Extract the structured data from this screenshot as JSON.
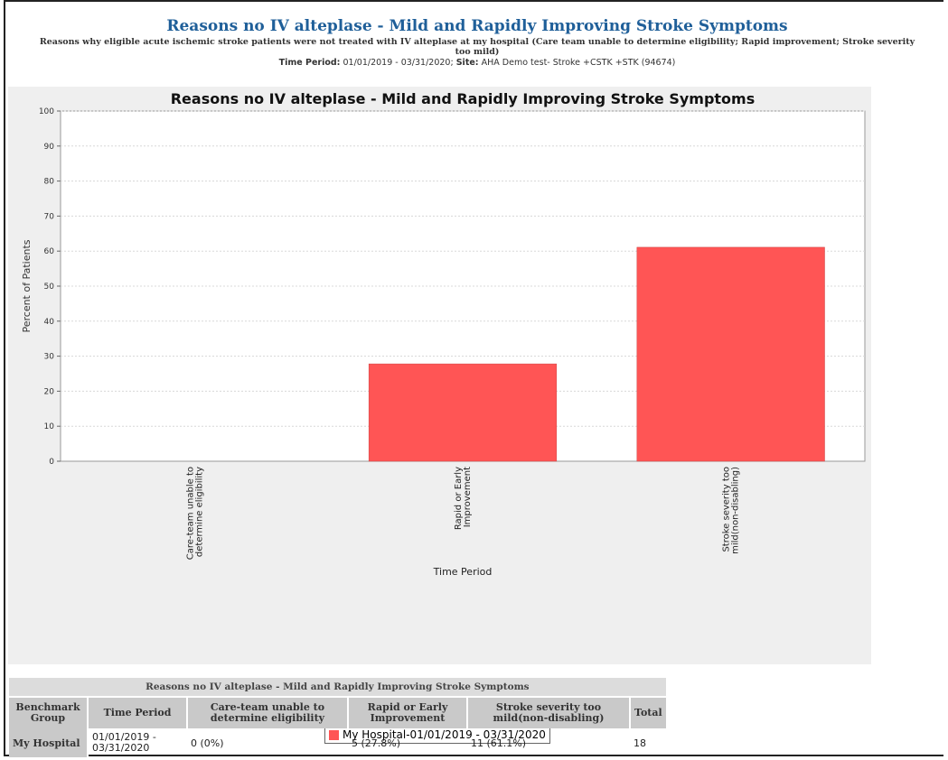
{
  "header": {
    "title": "Reasons no IV alteplase - Mild and Rapidly Improving Stroke Symptoms",
    "subtitle": "Reasons why eligible acute ischemic stroke patients were not treated with IV alteplase at my hospital (Care team unable to determine eligibility; Rapid improvement; Stroke severity",
    "subtitle_cont": "too mild)",
    "time_period_label": "Time Period:",
    "time_period_value": "01/01/2019 - 03/31/2020;",
    "site_label": "Site:",
    "site_value": "AHA Demo test- Stroke +CSTK +STK (94674)"
  },
  "chart_data": {
    "type": "bar",
    "title": "Reasons no IV alteplase - Mild and Rapidly Improving Stroke Symptoms",
    "xlabel": "Time Period",
    "ylabel": "Percent of Patients",
    "ylim": [
      0,
      100
    ],
    "yticks": [
      0,
      10,
      20,
      30,
      40,
      50,
      60,
      70,
      80,
      90,
      100
    ],
    "categories": [
      [
        "Care-team unable to",
        "determine eligibility"
      ],
      [
        "Rapid or Early",
        "Improvement"
      ],
      [
        "Stroke severity too",
        "mild(non-disabling)"
      ]
    ],
    "series": [
      {
        "name": "My Hospital-01/01/2019 - 03/31/2020",
        "values": [
          0,
          27.8,
          61.1
        ],
        "color": "#ff5555"
      }
    ],
    "grid": true,
    "legend": "bottom-center"
  },
  "table": {
    "caption": "Reasons no IV alteplase - Mild and Rapidly Improving Stroke Symptoms",
    "headers": [
      [
        "Benchmark",
        "Group"
      ],
      [
        "Time Period"
      ],
      [
        "Care-team unable to",
        "determine eligibility"
      ],
      [
        "Rapid or Early",
        "Improvement"
      ],
      [
        "Stroke severity too",
        "mild(non-disabling)"
      ],
      [
        "Total"
      ]
    ],
    "rows": [
      {
        "group": "My Hospital",
        "time_period": [
          "01/01/2019 -",
          "03/31/2020"
        ],
        "care_team": "0 (0%)",
        "rapid": "5 (27.8%)",
        "severity": "11 (61.1%)",
        "total": "18"
      }
    ]
  }
}
